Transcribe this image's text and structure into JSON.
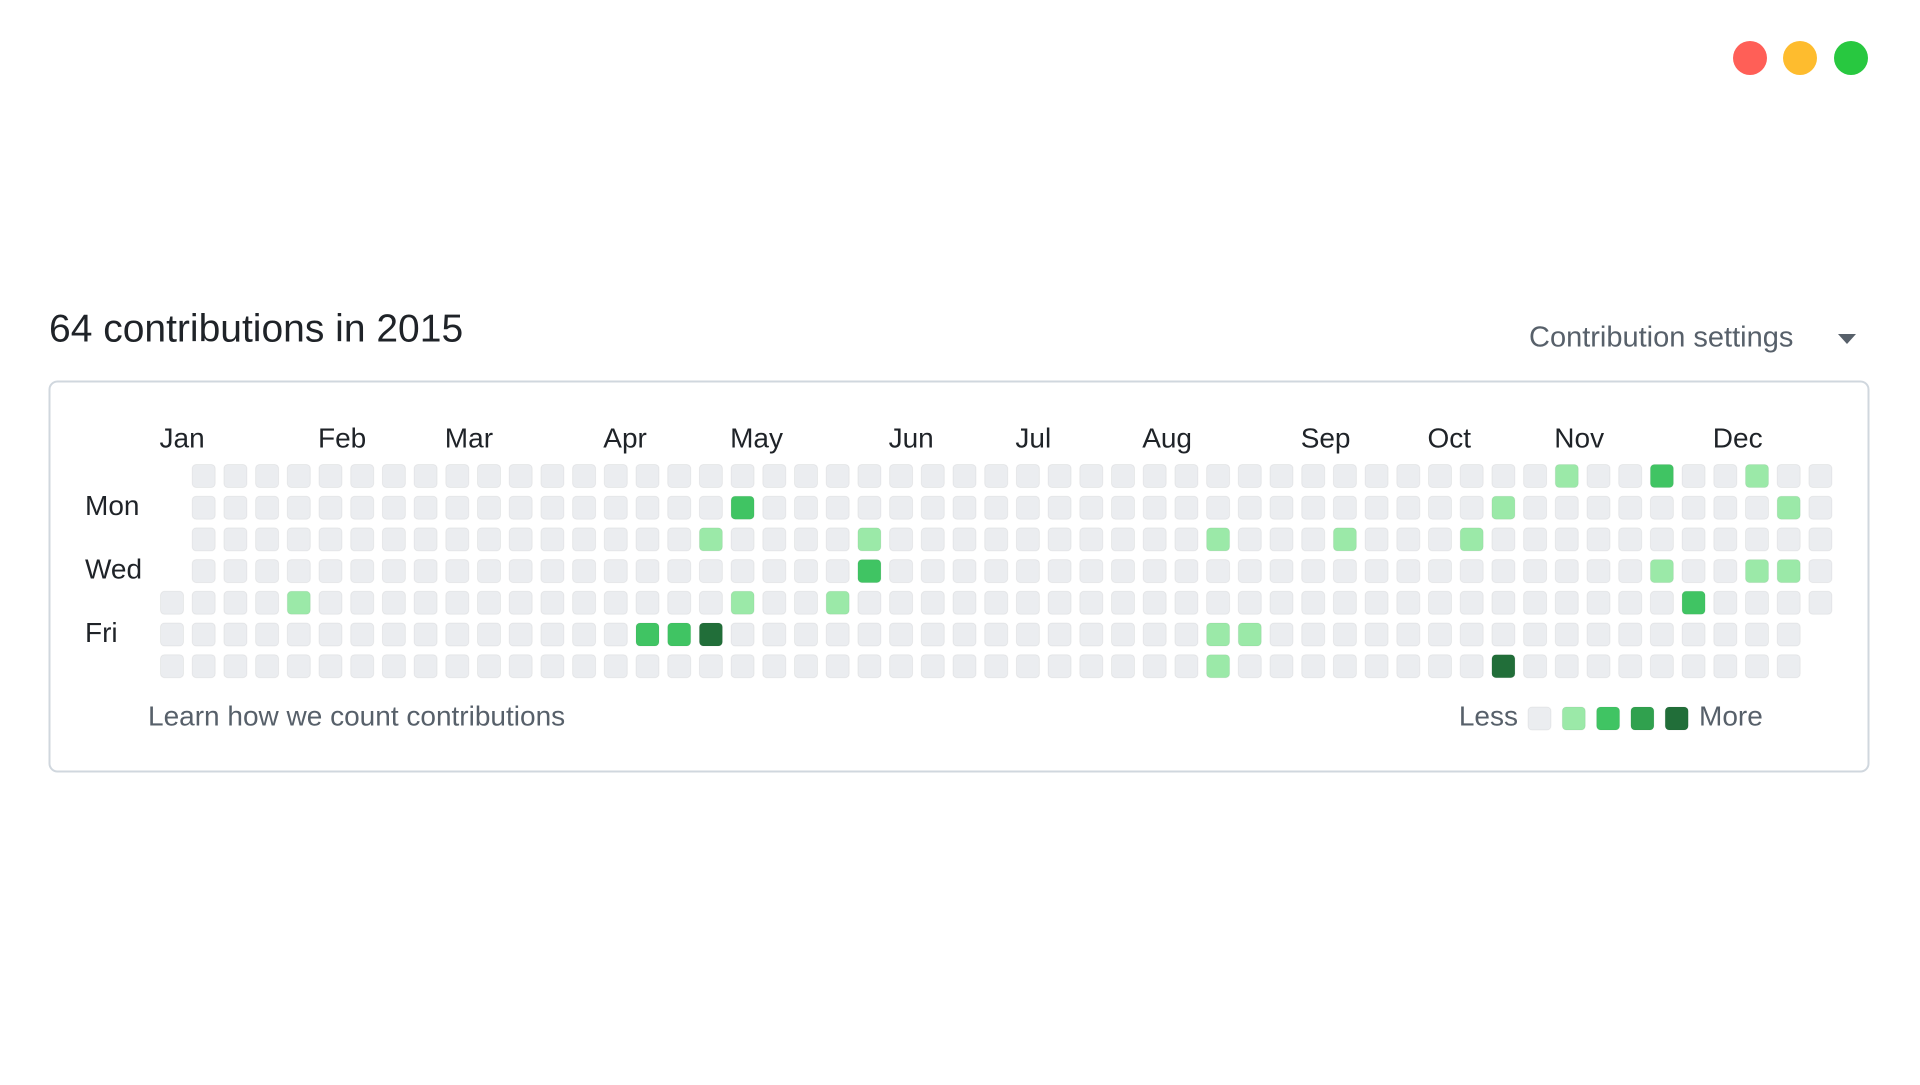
{
  "header": {
    "title": "64 contributions in 2015",
    "settings": "Contribution settings"
  },
  "graph": {
    "months": [
      "Jan",
      "Feb",
      "Mar",
      "Apr",
      "May",
      "Jun",
      "Jul",
      "Aug",
      "Sep",
      "Oct",
      "Nov",
      "Dec"
    ],
    "days": [
      "Mon",
      "Wed",
      "Fri"
    ],
    "level_colors": [
      "#ebedf0",
      "#9be9a8",
      "#40c463",
      "#30a14e",
      "#216e39"
    ],
    "rows": [
      [
        null,
        0,
        0,
        0,
        0,
        0,
        0,
        0,
        0,
        0,
        0,
        0,
        0,
        0,
        0,
        0,
        0,
        0,
        0,
        0,
        0,
        0,
        0,
        0,
        0,
        0,
        0,
        0,
        0,
        0,
        0,
        0,
        0,
        0,
        0,
        0,
        0,
        0,
        0,
        0,
        0,
        0,
        0,
        0,
        1,
        0,
        0,
        2,
        0,
        0,
        1,
        0,
        0
      ],
      [
        null,
        0,
        0,
        0,
        0,
        0,
        0,
        0,
        0,
        0,
        0,
        0,
        0,
        0,
        0,
        0,
        0,
        0,
        2,
        0,
        0,
        0,
        0,
        0,
        0,
        0,
        0,
        0,
        0,
        0,
        0,
        0,
        0,
        0,
        0,
        0,
        0,
        0,
        0,
        0,
        0,
        0,
        1,
        0,
        0,
        0,
        0,
        0,
        0,
        0,
        0,
        1,
        0
      ],
      [
        null,
        0,
        0,
        0,
        0,
        0,
        0,
        0,
        0,
        0,
        0,
        0,
        0,
        0,
        0,
        0,
        0,
        1,
        0,
        0,
        0,
        0,
        1,
        0,
        0,
        0,
        0,
        0,
        0,
        0,
        0,
        0,
        0,
        1,
        0,
        0,
        0,
        1,
        0,
        0,
        0,
        1,
        0,
        0,
        0,
        0,
        0,
        0,
        0,
        0,
        0,
        0,
        0
      ],
      [
        null,
        0,
        0,
        0,
        0,
        0,
        0,
        0,
        0,
        0,
        0,
        0,
        0,
        0,
        0,
        0,
        0,
        0,
        0,
        0,
        0,
        0,
        2,
        0,
        0,
        0,
        0,
        0,
        0,
        0,
        0,
        0,
        0,
        0,
        0,
        0,
        0,
        0,
        0,
        0,
        0,
        0,
        0,
        0,
        0,
        0,
        0,
        1,
        0,
        0,
        1,
        1,
        0
      ],
      [
        0,
        0,
        0,
        0,
        1,
        0,
        0,
        0,
        0,
        0,
        0,
        0,
        0,
        0,
        0,
        0,
        0,
        0,
        1,
        0,
        0,
        1,
        0,
        0,
        0,
        0,
        0,
        0,
        0,
        0,
        0,
        0,
        0,
        0,
        0,
        0,
        0,
        0,
        0,
        0,
        0,
        0,
        0,
        0,
        0,
        0,
        0,
        0,
        2,
        0,
        0,
        0,
        0
      ],
      [
        0,
        0,
        0,
        0,
        0,
        0,
        0,
        0,
        0,
        0,
        0,
        0,
        0,
        0,
        0,
        2,
        2,
        4,
        0,
        0,
        0,
        0,
        0,
        0,
        0,
        0,
        0,
        0,
        0,
        0,
        0,
        0,
        0,
        1,
        1,
        0,
        0,
        0,
        0,
        0,
        0,
        0,
        0,
        0,
        0,
        0,
        0,
        0,
        0,
        0,
        0,
        0,
        null
      ],
      [
        0,
        0,
        0,
        0,
        0,
        0,
        0,
        0,
        0,
        0,
        0,
        0,
        0,
        0,
        0,
        0,
        0,
        0,
        0,
        0,
        0,
        0,
        0,
        0,
        0,
        0,
        0,
        0,
        0,
        0,
        0,
        0,
        0,
        1,
        0,
        0,
        0,
        0,
        0,
        0,
        0,
        0,
        4,
        0,
        0,
        0,
        0,
        0,
        0,
        0,
        0,
        0,
        null
      ]
    ]
  },
  "footer": {
    "link": "Learn how we count contributions",
    "less": "Less",
    "more": "More"
  }
}
